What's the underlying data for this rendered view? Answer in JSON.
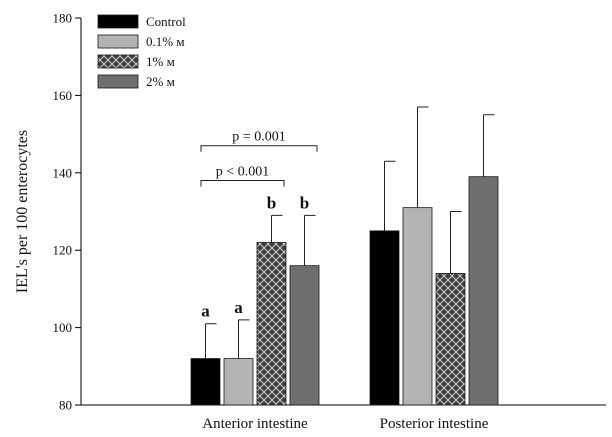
{
  "chart_data": {
    "type": "bar",
    "ylabel": "IEL's per 100 enterocytes",
    "xlabel": "",
    "ylim": [
      80,
      180
    ],
    "yticks": [
      80,
      100,
      120,
      140,
      160,
      180
    ],
    "categories": [
      "Anterior intestine",
      "Posterior intestine"
    ],
    "series": [
      {
        "name": "Control",
        "values": [
          92,
          125
        ],
        "errors": [
          9,
          18
        ],
        "color": "#000000",
        "pattern": "solid"
      },
      {
        "name": "0.1% м",
        "values": [
          92,
          131
        ],
        "errors": [
          10,
          26
        ],
        "color": "#b3b3b3",
        "pattern": "solid"
      },
      {
        "name": "1% м",
        "values": [
          122,
          114
        ],
        "errors": [
          7,
          16
        ],
        "color": "#3d3d3d",
        "pattern": "crosshatch"
      },
      {
        "name": "2% м",
        "values": [
          116,
          139
        ],
        "errors": [
          13,
          16
        ],
        "color": "#6f6f6f",
        "pattern": "solid"
      }
    ],
    "legend_position": "top-left",
    "grid": false,
    "annotations": {
      "letters": [
        {
          "category": 0,
          "series": 0,
          "text": "a"
        },
        {
          "category": 0,
          "series": 1,
          "text": "a"
        },
        {
          "category": 0,
          "series": 2,
          "text": "b"
        },
        {
          "category": 0,
          "series": 3,
          "text": "b"
        }
      ],
      "brackets": [
        {
          "category": 0,
          "from_series": 0,
          "to_series": 2,
          "text": "p < 0.001",
          "y": 138
        },
        {
          "category": 0,
          "from_series": 0,
          "to_series": 3,
          "text": "p = 0.001",
          "y": 147
        }
      ]
    }
  }
}
